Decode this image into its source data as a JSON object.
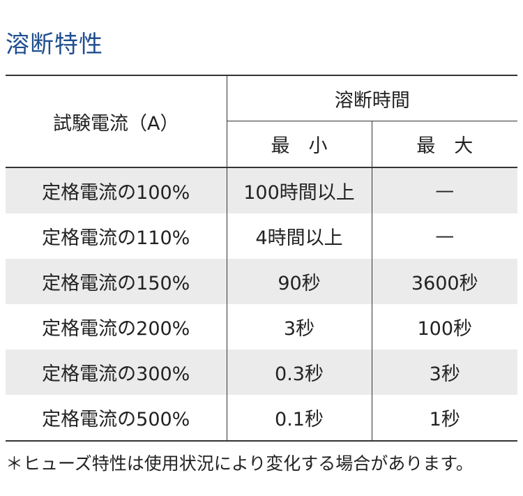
{
  "title": "溶断特性",
  "table": {
    "header": {
      "test_current": "試験電流（A）",
      "blow_time": "溶断時間",
      "min": "最　小",
      "max": "最　大"
    },
    "rows": [
      [
        "定格電流の100%",
        "100時間以上",
        "—"
      ],
      [
        "定格電流の110%",
        "4時間以上",
        "—"
      ],
      [
        "定格電流の150%",
        "90秒",
        "3600秒"
      ],
      [
        "定格電流の200%",
        "3秒",
        "100秒"
      ],
      [
        "定格電流の300%",
        "0.3秒",
        "3秒"
      ],
      [
        "定格電流の500%",
        "0.1秒",
        "1秒"
      ]
    ]
  },
  "note": "＊ヒューズ特性は使用状況により変化する場合があります。"
}
